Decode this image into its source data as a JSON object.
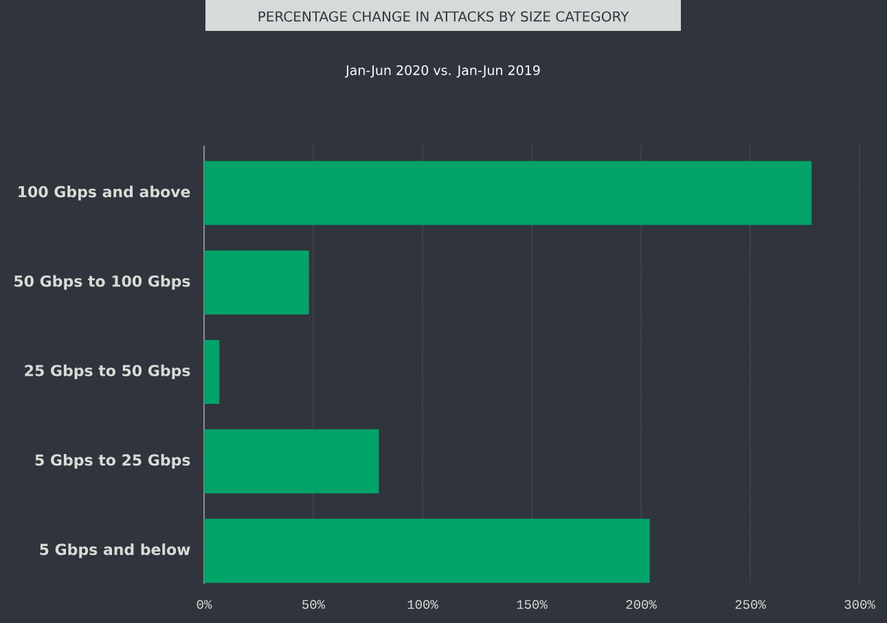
{
  "chart_data": {
    "type": "bar",
    "orientation": "horizontal",
    "title": "PERCENTAGE CHANGE IN ATTACKS BY SIZE CATEGORY",
    "subtitle": "Jan-Jun 2020 vs. Jan-Jun 2019",
    "categories": [
      "100 Gbps and above",
      "50 Gbps to 100 Gbps",
      "25 Gbps to 50 Gbps",
      "5 Gbps to 25 Gbps",
      "5 Gbps and below"
    ],
    "values": [
      278,
      48,
      7,
      80,
      204
    ],
    "color": "#00a468",
    "xlim": [
      0,
      300
    ],
    "xticks": [
      {
        "value": 0,
        "label": "0%"
      },
      {
        "value": 50,
        "label": "50%"
      },
      {
        "value": 100,
        "label": "100%"
      },
      {
        "value": 150,
        "label": "150%"
      },
      {
        "value": 200,
        "label": "200%"
      },
      {
        "value": 250,
        "label": "250%"
      },
      {
        "value": 300,
        "label": "300%"
      }
    ],
    "grid": "x"
  }
}
